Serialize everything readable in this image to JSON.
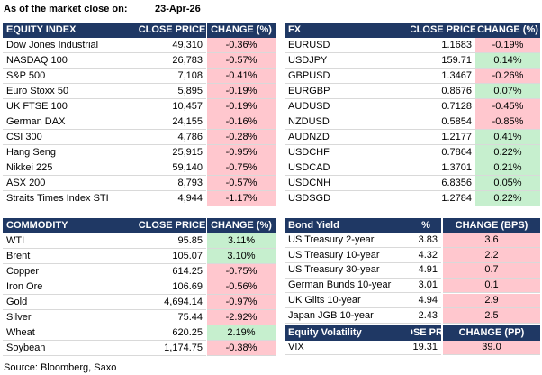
{
  "header": {
    "title": "As of the market close on:",
    "date": "23-Apr-26"
  },
  "tables": [
    {
      "columns": [
        "EQUITY INDEX",
        "CLOSE PRICE",
        "CHANGE (%)"
      ],
      "rows": [
        [
          "Dow Jones Industrial",
          "49,310",
          "-0.36%"
        ],
        [
          "NASDAQ 100",
          "26,783",
          "-0.57%"
        ],
        [
          "S&P 500",
          "7,108",
          "-0.41%"
        ],
        [
          "Euro Stoxx 50",
          "5,895",
          "-0.19%"
        ],
        [
          "UK FTSE 100",
          "10,457",
          "-0.19%"
        ],
        [
          "German DAX",
          "24,155",
          "-0.16%"
        ],
        [
          "CSI 300",
          "4,786",
          "-0.28%"
        ],
        [
          "Hang Seng",
          "25,915",
          "-0.95%"
        ],
        [
          "Nikkei 225",
          "59,140",
          "-0.75%"
        ],
        [
          "ASX 200",
          "8,793",
          "-0.57%"
        ],
        [
          "Straits Times Index STI",
          "4,944",
          "-1.17%"
        ]
      ],
      "change_colors": [
        "#ffc7ce",
        "#ffc7ce",
        "#ffc7ce",
        "#ffc7ce",
        "#ffc7ce",
        "#ffc7ce",
        "#ffc7ce",
        "#ffc7ce",
        "#ffc7ce",
        "#ffc7ce",
        "#ffc7ce"
      ]
    },
    {
      "columns": [
        "FX",
        "CLOSE PRICE",
        "CHANGE (%)"
      ],
      "rows": [
        [
          "EURUSD",
          "1.1683",
          "-0.19%"
        ],
        [
          "USDJPY",
          "159.71",
          "0.14%"
        ],
        [
          "GBPUSD",
          "1.3467",
          "-0.26%"
        ],
        [
          "EURGBP",
          "0.8676",
          "0.07%"
        ],
        [
          "AUDUSD",
          "0.7128",
          "-0.45%"
        ],
        [
          "NZDUSD",
          "0.5854",
          "-0.85%"
        ],
        [
          "AUDNZD",
          "1.2177",
          "0.41%"
        ],
        [
          "USDCHF",
          "0.7864",
          "0.22%"
        ],
        [
          "USDCAD",
          "1.3701",
          "0.21%"
        ],
        [
          "USDCNH",
          "6.8356",
          "0.05%"
        ],
        [
          "USDSGD",
          "1.2784",
          "0.22%"
        ]
      ],
      "change_colors": [
        "#ffc7ce",
        "#c6efce",
        "#ffc7ce",
        "#c6efce",
        "#ffc7ce",
        "#ffc7ce",
        "#c6efce",
        "#c6efce",
        "#c6efce",
        "#c6efce",
        "#c6efce"
      ]
    },
    {
      "columns": [
        "COMMODITY",
        "CLOSE PRICE",
        "CHANGE (%)"
      ],
      "rows": [
        [
          "WTI",
          "95.85",
          "3.11%"
        ],
        [
          "Brent",
          "105.07",
          "3.10%"
        ],
        [
          "Copper",
          "614.25",
          "-0.75%"
        ],
        [
          "Iron Ore",
          "106.69",
          "-0.56%"
        ],
        [
          "Gold",
          "4,694.14",
          "-0.97%"
        ],
        [
          "Silver",
          "75.44",
          "-2.92%"
        ],
        [
          "Wheat",
          "620.25",
          "2.19%"
        ],
        [
          "Soybean",
          "1,174.75",
          "-0.38%"
        ]
      ],
      "change_colors": [
        "#c6efce",
        "#c6efce",
        "#ffc7ce",
        "#ffc7ce",
        "#ffc7ce",
        "#ffc7ce",
        "#c6efce",
        "#ffc7ce"
      ]
    },
    {
      "columns": [
        "Bond Yield",
        "%",
        "CHANGE (BPS)"
      ],
      "rows": [
        [
          "US Treasury 2-year",
          "3.83",
          "3.6"
        ],
        [
          "US Treasury 10-year",
          "4.32",
          "2.2"
        ],
        [
          "US Treasury 30-year",
          "4.91",
          "0.7"
        ],
        [
          "German Bunds 10-year",
          "3.01",
          "0.1"
        ],
        [
          "UK Gilts 10-year",
          "4.94",
          "2.9"
        ],
        [
          "Japan JGB 10-year",
          "2.43",
          "2.5"
        ]
      ],
      "change_colors": [
        "#ffc7ce",
        "#ffc7ce",
        "#ffc7ce",
        "#ffc7ce",
        "#ffc7ce",
        "#ffc7ce"
      ]
    },
    {
      "columns": [
        "Equity Volatility",
        "CLOSE PRICE",
        "CHANGE (PP)"
      ],
      "rows": [
        [
          "VIX",
          "19.31",
          "39.0"
        ]
      ],
      "change_colors": [
        "#ffc7ce"
      ]
    }
  ],
  "source": "Source: Bloomberg, Saxo"
}
